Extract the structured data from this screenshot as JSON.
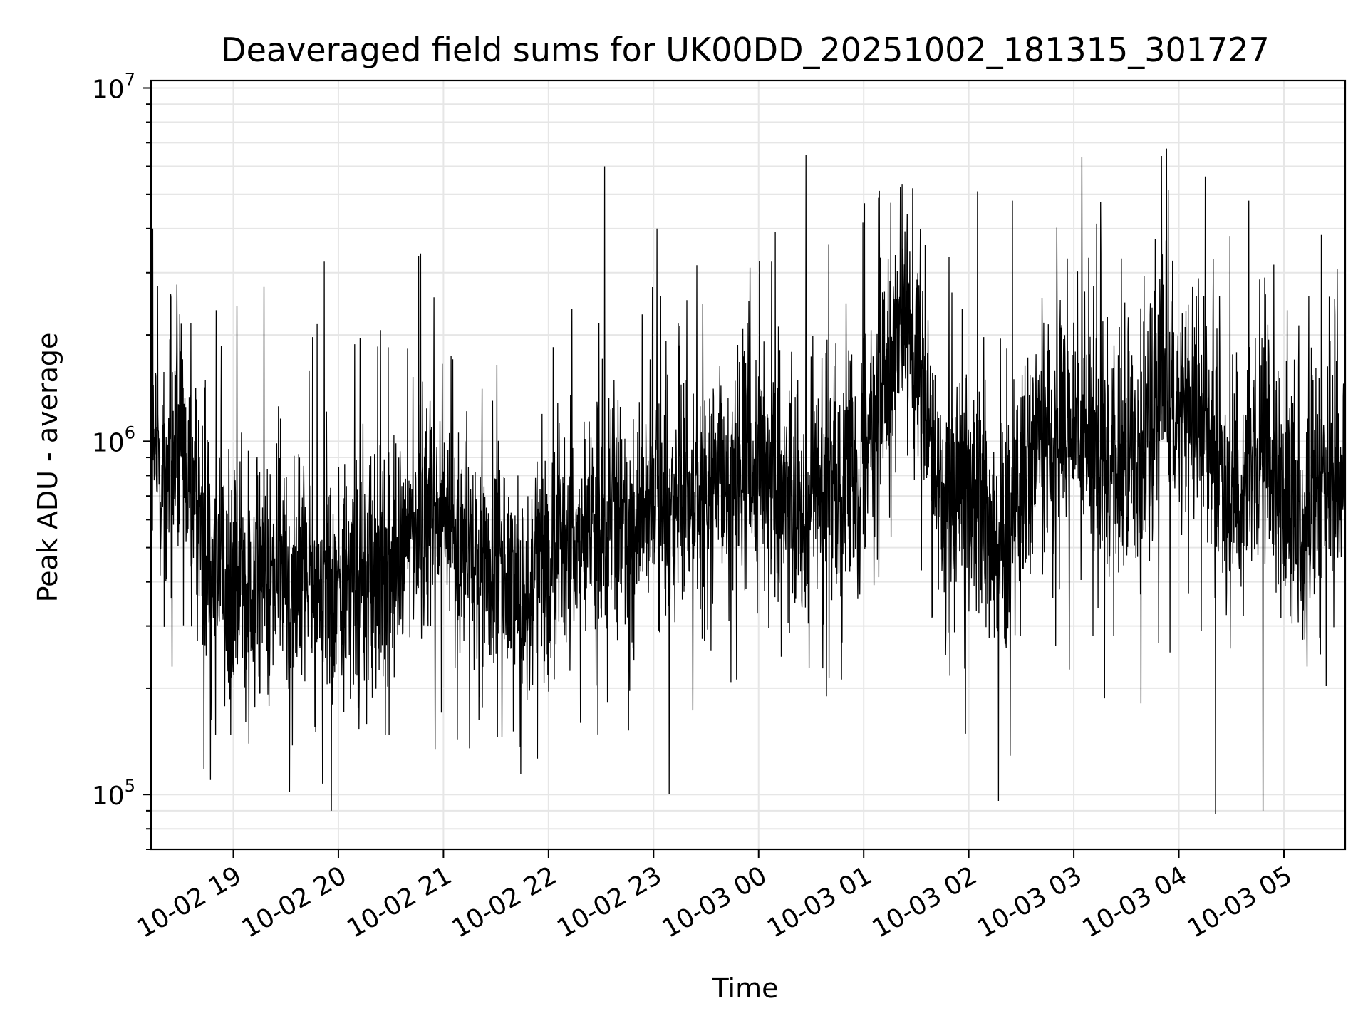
{
  "chart_data": {
    "type": "line",
    "title": "Deaveraged field sums for UK00DD_20251002_181315_301727",
    "xlabel": "Time",
    "ylabel": "Peak ADU - average",
    "yscale": "log",
    "ylim": [
      70000,
      10500000
    ],
    "xlim": [
      "2025-10-02 18:13",
      "2025-10-03 05:35"
    ],
    "x_ticks": [
      "10-02 19",
      "10-02 20",
      "10-02 21",
      "10-02 22",
      "10-02 23",
      "10-03 00",
      "10-03 01",
      "10-03 02",
      "10-03 03",
      "10-03 04",
      "10-03 05"
    ],
    "y_ticks": [
      {
        "base": "10",
        "exp": "5"
      },
      {
        "base": "10",
        "exp": "6"
      },
      {
        "base": "10",
        "exp": "7"
      }
    ],
    "grid": true,
    "line_color": "#000000",
    "series": [
      {
        "name": "",
        "approximate_trend": {
          "x": [
            "2025-10-02 18:15",
            "2025-10-02 18:30",
            "2025-10-02 18:45",
            "2025-10-02 19:00",
            "2025-10-02 19:30",
            "2025-10-02 20:00",
            "2025-10-02 20:30",
            "2025-10-02 20:50",
            "2025-10-02 21:15",
            "2025-10-02 21:45",
            "2025-10-02 22:00",
            "2025-10-02 22:30",
            "2025-10-02 23:00",
            "2025-10-02 23:30",
            "2025-10-02 23:55",
            "2025-10-03 00:15",
            "2025-10-03 00:45",
            "2025-10-03 01:00",
            "2025-10-03 01:15",
            "2025-10-03 01:30",
            "2025-10-03 01:45",
            "2025-10-03 02:00",
            "2025-10-03 02:20",
            "2025-10-03 02:40",
            "2025-10-03 03:00",
            "2025-10-03 03:30",
            "2025-10-03 03:50",
            "2025-10-03 04:10",
            "2025-10-03 04:30",
            "2025-10-03 04:50",
            "2025-10-03 05:10",
            "2025-10-03 05:35"
          ],
          "y": [
            850000,
            900000,
            500000,
            380000,
            420000,
            400000,
            420000,
            700000,
            480000,
            380000,
            480000,
            560000,
            620000,
            720000,
            900000,
            720000,
            780000,
            900000,
            1900000,
            1700000,
            620000,
            780000,
            520000,
            1050000,
            1050000,
            820000,
            1300000,
            1250000,
            720000,
            900000,
            580000,
            850000
          ]
        },
        "spikes": [
          {
            "x": "2025-10-02 18:14",
            "y": 4000000
          },
          {
            "x": "2025-10-02 18:47",
            "y": 110000
          },
          {
            "x": "2025-10-02 19:56",
            "y": 90000
          },
          {
            "x": "2025-10-02 20:47",
            "y": 3400000
          },
          {
            "x": "2025-10-02 22:32",
            "y": 6000000
          },
          {
            "x": "2025-10-02 23:02",
            "y": 4000000
          },
          {
            "x": "2025-10-02 23:55",
            "y": 3100000
          },
          {
            "x": "2025-10-03 00:40",
            "y": 3600000
          },
          {
            "x": "2025-10-03 01:28",
            "y": 5200000
          },
          {
            "x": "2025-10-03 02:05",
            "y": 5100000
          },
          {
            "x": "2025-10-03 02:17",
            "y": 96000
          },
          {
            "x": "2025-10-03 02:25",
            "y": 4800000
          },
          {
            "x": "2025-10-03 03:50",
            "y": 6400000
          },
          {
            "x": "2025-10-03 04:21",
            "y": 88000
          },
          {
            "x": "2025-10-03 04:40",
            "y": 4800000
          },
          {
            "x": "2025-10-03 04:48",
            "y": 90000
          }
        ]
      }
    ]
  }
}
